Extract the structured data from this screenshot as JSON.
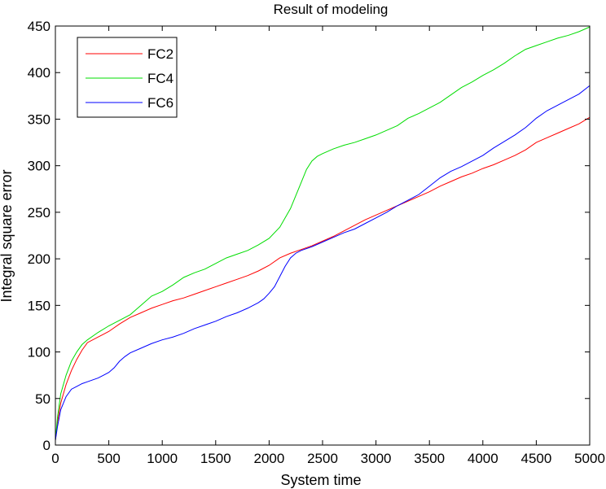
{
  "chart_data": {
    "type": "line",
    "title": "Result of modeling",
    "xlabel": "System time",
    "ylabel": "Integral square error",
    "xlim": [
      0,
      5000
    ],
    "ylim": [
      0,
      450
    ],
    "xticks": [
      0,
      500,
      1000,
      1500,
      2000,
      2500,
      3000,
      3500,
      4000,
      4500,
      5000
    ],
    "yticks": [
      0,
      50,
      100,
      150,
      200,
      250,
      300,
      350,
      400,
      450
    ],
    "grid": false,
    "legend_position": "top-left",
    "series": [
      {
        "name": "FC2",
        "color": "#ff0000",
        "x": [
          0,
          20,
          50,
          100,
          150,
          200,
          250,
          300,
          400,
          500,
          600,
          700,
          800,
          900,
          1000,
          1100,
          1200,
          1300,
          1400,
          1500,
          1600,
          1700,
          1800,
          1900,
          2000,
          2100,
          2200,
          2300,
          2400,
          2500,
          2600,
          2700,
          2800,
          2900,
          3000,
          3100,
          3200,
          3300,
          3400,
          3500,
          3600,
          3700,
          3800,
          3900,
          4000,
          4100,
          4200,
          4300,
          4400,
          4500,
          4600,
          4700,
          4800,
          4900,
          5000
        ],
        "y": [
          5,
          25,
          45,
          65,
          80,
          92,
          102,
          110,
          116,
          122,
          130,
          137,
          142,
          147,
          151,
          155,
          158,
          162,
          166,
          170,
          174,
          178,
          182,
          187,
          193,
          201,
          206,
          210,
          214,
          219,
          224,
          230,
          236,
          242,
          247,
          252,
          257,
          262,
          267,
          272,
          278,
          283,
          288,
          292,
          297,
          301,
          306,
          311,
          317,
          325,
          330,
          335,
          340,
          345,
          352
        ]
      },
      {
        "name": "FC4",
        "color": "#00dd00",
        "x": [
          0,
          20,
          50,
          100,
          150,
          200,
          250,
          300,
          400,
          500,
          600,
          700,
          800,
          900,
          1000,
          1100,
          1200,
          1300,
          1400,
          1500,
          1600,
          1700,
          1800,
          1900,
          2000,
          2100,
          2200,
          2250,
          2300,
          2350,
          2400,
          2450,
          2500,
          2600,
          2700,
          2800,
          2900,
          3000,
          3100,
          3200,
          3300,
          3400,
          3500,
          3600,
          3700,
          3800,
          3900,
          4000,
          4100,
          4200,
          4300,
          4400,
          4500,
          4600,
          4700,
          4800,
          4900,
          5000
        ],
        "y": [
          5,
          30,
          55,
          75,
          90,
          100,
          108,
          113,
          121,
          128,
          134,
          140,
          150,
          160,
          165,
          172,
          180,
          185,
          189,
          195,
          201,
          205,
          209,
          215,
          222,
          234,
          254,
          268,
          282,
          296,
          305,
          310,
          313,
          318,
          322,
          325,
          329,
          333,
          338,
          343,
          351,
          356,
          362,
          368,
          376,
          384,
          390,
          397,
          403,
          410,
          418,
          425,
          429,
          433,
          437,
          440,
          444,
          449
        ]
      },
      {
        "name": "FC6",
        "color": "#0000ff",
        "x": [
          0,
          20,
          50,
          100,
          150,
          200,
          250,
          300,
          400,
          500,
          550,
          600,
          650,
          700,
          800,
          900,
          1000,
          1100,
          1200,
          1300,
          1400,
          1500,
          1600,
          1700,
          1800,
          1900,
          1950,
          2000,
          2050,
          2100,
          2150,
          2200,
          2250,
          2300,
          2400,
          2500,
          2600,
          2700,
          2800,
          2900,
          3000,
          3100,
          3200,
          3300,
          3400,
          3500,
          3600,
          3700,
          3800,
          3900,
          4000,
          4100,
          4200,
          4300,
          4400,
          4500,
          4600,
          4700,
          4800,
          4900,
          5000
        ],
        "y": [
          5,
          20,
          38,
          52,
          60,
          63,
          66,
          68,
          72,
          78,
          83,
          90,
          95,
          99,
          104,
          109,
          113,
          116,
          120,
          125,
          129,
          133,
          138,
          142,
          147,
          153,
          157,
          163,
          170,
          181,
          192,
          201,
          206,
          209,
          213,
          218,
          223,
          228,
          232,
          238,
          244,
          250,
          257,
          263,
          269,
          278,
          287,
          294,
          299,
          305,
          311,
          319,
          326,
          333,
          341,
          351,
          359,
          365,
          371,
          377,
          386
        ]
      }
    ]
  }
}
